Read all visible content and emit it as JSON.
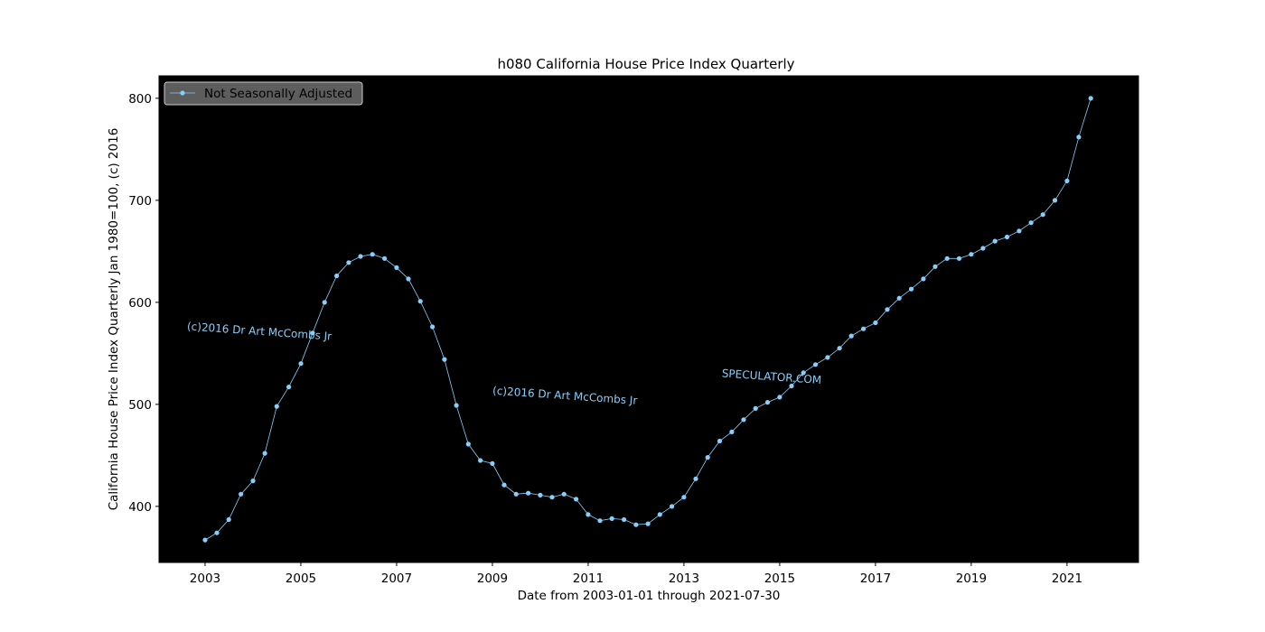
{
  "chart_data": {
    "type": "line",
    "title": "h080 California House Price Index Quarterly",
    "xlabel": "Date from 2003-01-01 through 2021-07-30",
    "ylabel": "California House Price Index Quarterly Jan 1980=100, (c) 2016",
    "xlim": [
      "2002-01-15",
      "2022-06-30"
    ],
    "ylim": [
      345,
      822
    ],
    "x_ticks": [
      "2003",
      "2005",
      "2007",
      "2009",
      "2011",
      "2013",
      "2015",
      "2017",
      "2019",
      "2021"
    ],
    "y_ticks": [
      400,
      500,
      600,
      700,
      800
    ],
    "legend": {
      "position": "top-left",
      "entries": [
        "Not Seasonally Adjusted"
      ]
    },
    "background": "#000000",
    "grid": false,
    "series": [
      {
        "name": "Not Seasonally Adjusted",
        "color": "#87cefa",
        "marker": "circle",
        "x": [
          "2003-01-01",
          "2003-04-01",
          "2003-07-01",
          "2003-10-01",
          "2004-01-01",
          "2004-04-01",
          "2004-07-01",
          "2004-10-01",
          "2005-01-01",
          "2005-04-01",
          "2005-07-01",
          "2005-10-01",
          "2006-01-01",
          "2006-04-01",
          "2006-07-01",
          "2006-10-01",
          "2007-01-01",
          "2007-04-01",
          "2007-07-01",
          "2007-10-01",
          "2008-01-01",
          "2008-04-01",
          "2008-07-01",
          "2008-10-01",
          "2009-01-01",
          "2009-04-01",
          "2009-07-01",
          "2009-10-01",
          "2010-01-01",
          "2010-04-01",
          "2010-07-01",
          "2010-10-01",
          "2011-01-01",
          "2011-04-01",
          "2011-07-01",
          "2011-10-01",
          "2012-01-01",
          "2012-04-01",
          "2012-07-01",
          "2012-10-01",
          "2013-01-01",
          "2013-04-01",
          "2013-07-01",
          "2013-10-01",
          "2014-01-01",
          "2014-04-01",
          "2014-07-01",
          "2014-10-01",
          "2015-01-01",
          "2015-04-01",
          "2015-07-01",
          "2015-10-01",
          "2016-01-01",
          "2016-04-01",
          "2016-07-01",
          "2016-10-01",
          "2017-01-01",
          "2017-04-01",
          "2017-07-01",
          "2017-10-01",
          "2018-01-01",
          "2018-04-01",
          "2018-07-01",
          "2018-10-01",
          "2019-01-01",
          "2019-04-01",
          "2019-07-01",
          "2019-10-01",
          "2020-01-01",
          "2020-04-01",
          "2020-07-01",
          "2020-10-01",
          "2021-01-01",
          "2021-04-01",
          "2021-07-01"
        ],
        "y": [
          367,
          374,
          387,
          412,
          425,
          452,
          498,
          517,
          540,
          570,
          600,
          626,
          639,
          645,
          647,
          643,
          634,
          623,
          601,
          576,
          544,
          499,
          461,
          445,
          442,
          421,
          412,
          413,
          411,
          409,
          412,
          407,
          392,
          386,
          388,
          387,
          382,
          383,
          392,
          400,
          409,
          427,
          448,
          464,
          473,
          485,
          496,
          502,
          507,
          518,
          531,
          539,
          546,
          555,
          567,
          574,
          580,
          593,
          604,
          613,
          623,
          635,
          643,
          643,
          647,
          653,
          660,
          664,
          670,
          678,
          686,
          700,
          719,
          762,
          800
        ]
      }
    ],
    "annotations": [
      {
        "text": "(c)2016 Dr Art McCombs Jr",
        "x": "2002-08-15",
        "y": 573
      },
      {
        "text": "(c)2016 Dr Art McCombs Jr",
        "x": "2009-01-01",
        "y": 510
      },
      {
        "text": "SPECULATOR.COM",
        "x": "2013-10-15",
        "y": 527
      }
    ]
  }
}
